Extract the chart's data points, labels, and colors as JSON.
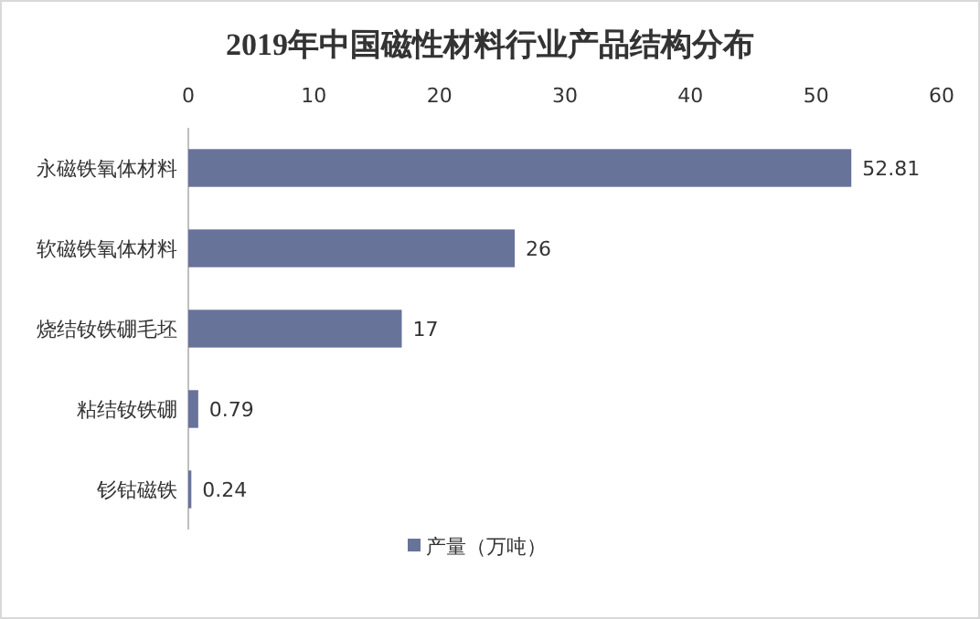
{
  "chart_data": {
    "type": "bar",
    "orientation": "horizontal",
    "title": "2019年中国磁性材料行业产品结构分布",
    "categories": [
      "永磁铁氧体材料",
      "软磁铁氧体材料",
      "烧结钕铁硼毛坯",
      "粘结钕铁硼",
      "钐钴磁铁"
    ],
    "series": [
      {
        "name": "产量（万吨）",
        "color": "#68739a",
        "values": [
          52.81,
          26,
          17,
          0.79,
          0.24
        ]
      }
    ],
    "xlim": [
      0,
      60
    ],
    "xticks": [
      0,
      10,
      20,
      30,
      40,
      50,
      60
    ],
    "data_labels": true,
    "legend": "bottom",
    "grid": false
  }
}
